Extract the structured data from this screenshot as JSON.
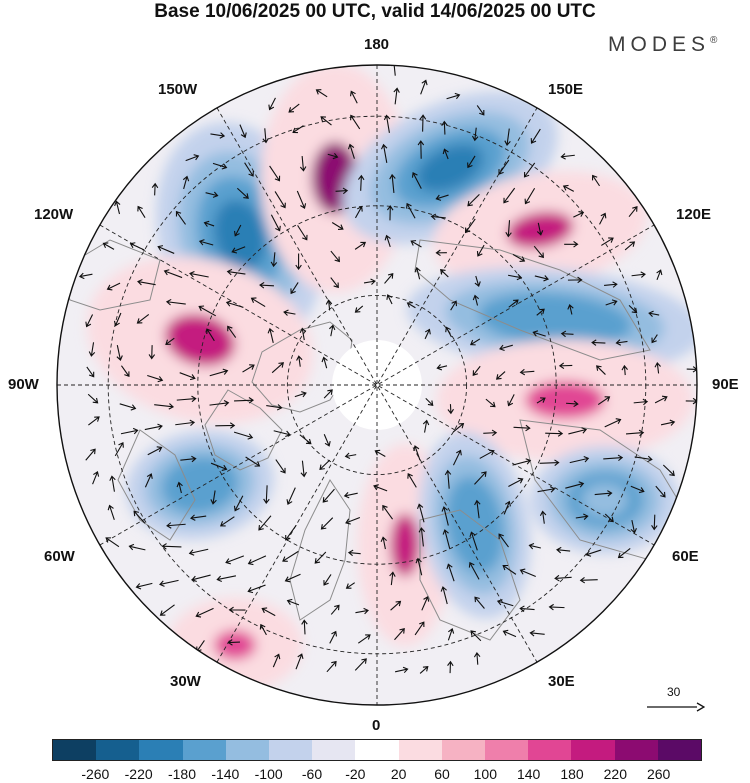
{
  "title": "Base 10/06/2025 00 UTC, valid 14/06/2025 00 UTC",
  "brand": "MODES",
  "brand_mark": "®",
  "longitude_labels": {
    "top": "180",
    "bottom": "0",
    "left": "90W",
    "right": "90E",
    "upper_left": "150W",
    "upper_right": "150E",
    "mid_upper_left": "120W",
    "mid_upper_right": "120E",
    "mid_lower_left": "60W",
    "mid_lower_right": "60E",
    "lower_left": "30W",
    "lower_right": "30E"
  },
  "reference_vector": {
    "label": "30"
  },
  "colorbar": {
    "ticks": [
      "-260",
      "-220",
      "-180",
      "-140",
      "-100",
      "-60",
      "-20",
      "20",
      "60",
      "100",
      "140",
      "180",
      "220",
      "260"
    ],
    "colors": [
      "#0d3f62",
      "#155f8f",
      "#2b7fb5",
      "#5aa0cf",
      "#94bde0",
      "#c3d2ec",
      "#e6e6f2",
      "#ffffff",
      "#fbdce1",
      "#f6b2c3",
      "#ef7fab",
      "#e14694",
      "#c41b7f",
      "#8c0b71",
      "#5b0a66"
    ]
  },
  "anomaly_features": [
    {
      "sign": "negative",
      "level": "-180",
      "region": "120W-150W"
    },
    {
      "sign": "positive",
      "level": "220",
      "region": "near 180 / 165W"
    },
    {
      "sign": "negative",
      "level": "-180",
      "region": "150E-160E"
    },
    {
      "sign": "positive",
      "level": "180",
      "region": "120E"
    },
    {
      "sign": "negative",
      "level": "-140",
      "region": "100E"
    },
    {
      "sign": "positive",
      "level": "140",
      "region": "90E"
    },
    {
      "sign": "positive",
      "level": "180",
      "region": "100W"
    },
    {
      "sign": "negative",
      "level": "-140",
      "region": "70W"
    },
    {
      "sign": "positive",
      "level": "180",
      "region": "5E"
    },
    {
      "sign": "negative",
      "level": "-140",
      "region": "20E"
    },
    {
      "sign": "positive",
      "level": "140",
      "region": "40W"
    },
    {
      "sign": "negative",
      "level": "-100",
      "region": "60E-70E"
    }
  ]
}
